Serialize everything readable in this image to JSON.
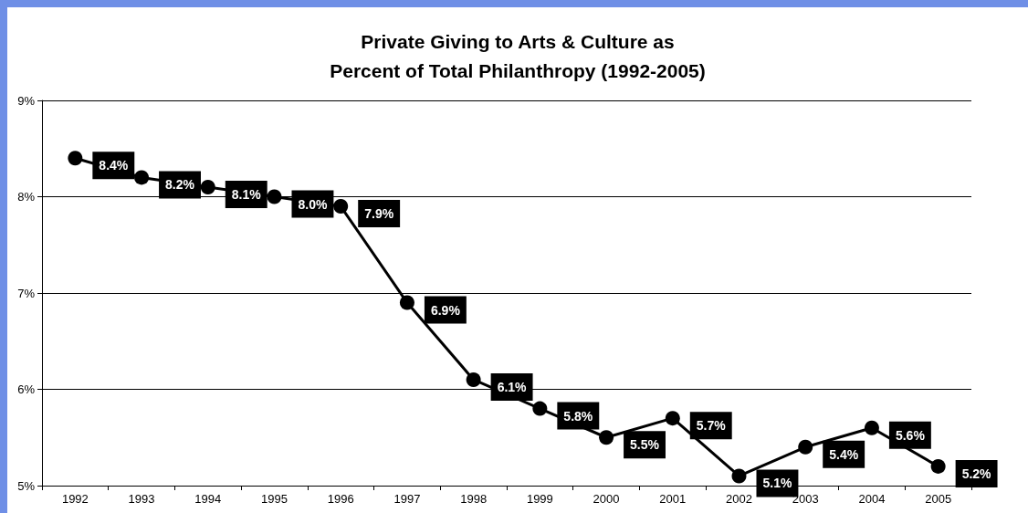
{
  "chart_data": {
    "type": "line",
    "title": "Private Giving to Arts & Culture as\nPercent of Total Philanthropy (1992-2005)",
    "categories": [
      "1992",
      "1993",
      "1994",
      "1995",
      "1996",
      "1997",
      "1998",
      "1999",
      "2000",
      "2001",
      "2002",
      "2003",
      "2004",
      "2005"
    ],
    "series": [
      {
        "color": "#000000",
        "values": [
          8.4,
          8.2,
          8.1,
          8.0,
          7.9,
          6.9,
          6.1,
          5.8,
          5.5,
          5.7,
          5.1,
          5.4,
          5.6,
          5.2
        ],
        "value_labels": [
          "8.4%",
          "8.2%",
          "8.1%",
          "8.0%",
          "7.9%",
          "6.9%",
          "6.1%",
          "5.8%",
          "5.5%",
          "5.7%",
          "5.1%",
          "5.4%",
          "5.6%",
          "5.2%"
        ]
      }
    ],
    "ylim": [
      5,
      9
    ],
    "yticks": [
      {
        "value": 5,
        "label": "5%"
      },
      {
        "value": 6,
        "label": "6%"
      },
      {
        "value": 7,
        "label": "7%"
      },
      {
        "value": 8,
        "label": "8%"
      },
      {
        "value": 9,
        "label": "9%"
      }
    ],
    "grid": "y",
    "marker": "circle",
    "line_style": "solid"
  }
}
